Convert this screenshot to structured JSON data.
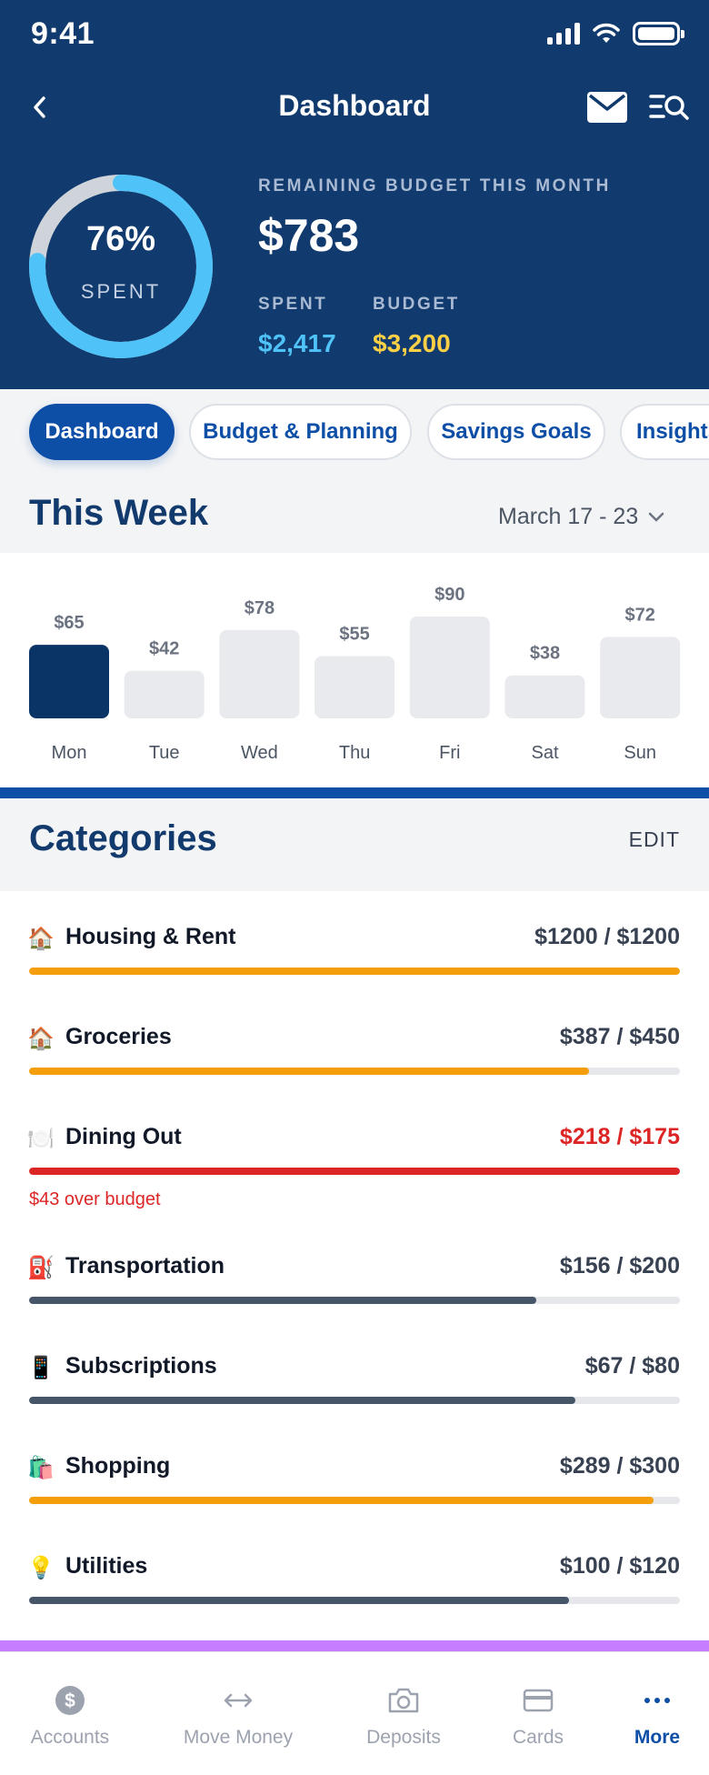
{
  "status_bar": {
    "time": "9:41"
  },
  "header": {
    "title": "Dashboard",
    "ring": {
      "percent_label": "76%",
      "spent_label": "SPENT",
      "fraction": 0.76,
      "track_color": "#cfd4db",
      "fill_color": "#4fc3f7"
    },
    "remaining_label": "REMAINING BUDGET THIS MONTH",
    "remaining_value": "$783",
    "spent_label": "SPENT",
    "spent_value": "$2,417",
    "budget_label": "BUDGET",
    "budget_value": "$3,200"
  },
  "tabs": [
    {
      "label": "Dashboard",
      "active": true
    },
    {
      "label": "Budget & Planning",
      "active": false
    },
    {
      "label": "Savings Goals",
      "active": false
    },
    {
      "label": "Insights",
      "active": false
    }
  ],
  "week": {
    "title": "This Week",
    "range": "March 17 - 23"
  },
  "chart_data": {
    "type": "bar",
    "categories": [
      "Mon",
      "Tue",
      "Wed",
      "Thu",
      "Fri",
      "Sat",
      "Sun"
    ],
    "values": [
      65,
      42,
      78,
      55,
      90,
      38,
      72
    ],
    "value_labels": [
      "$65",
      "$42",
      "$78",
      "$55",
      "$90",
      "$38",
      "$72"
    ],
    "highlight_index": 0,
    "highlight_color": "#0a3366",
    "bar_color": "#e8eaee",
    "title": "",
    "xlabel": "",
    "ylabel": ""
  },
  "categories_section": {
    "title": "Categories",
    "edit_label": "EDIT",
    "items": [
      {
        "icon": "🏠",
        "icon_name": "house-icon",
        "name": "Housing & Rent",
        "amount": "$1200 / $1200",
        "progress": 1.0,
        "color": "#f59e0b",
        "over": false,
        "warning": ""
      },
      {
        "icon": "🏠",
        "icon_name": "house-icon",
        "name": "Groceries",
        "amount": "$387 / $450",
        "progress": 0.86,
        "color": "#f59e0b",
        "over": false,
        "warning": ""
      },
      {
        "icon": "🍽️",
        "icon_name": "plate-icon",
        "name": "Dining Out",
        "amount": "$218 / $175",
        "progress": 1.0,
        "color": "#dc2626",
        "over": true,
        "warning": "$43 over budget"
      },
      {
        "icon": "⛽",
        "icon_name": "fuel-icon",
        "name": "Transportation",
        "amount": "$156 / $200",
        "progress": 0.78,
        "color": "#475569",
        "over": false,
        "warning": ""
      },
      {
        "icon": "📱",
        "icon_name": "phone-icon",
        "name": "Subscriptions",
        "amount": "$67 / $80",
        "progress": 0.84,
        "color": "#475569",
        "over": false,
        "warning": ""
      },
      {
        "icon": "🛍️",
        "icon_name": "shopping-bag-icon",
        "name": "Shopping",
        "amount": "$289 / $300",
        "progress": 0.96,
        "color": "#f59e0b",
        "over": false,
        "warning": ""
      },
      {
        "icon": "💡",
        "icon_name": "lightbulb-icon",
        "name": "Utilities",
        "amount": "$100 / $120",
        "progress": 0.83,
        "color": "#475569",
        "over": false,
        "warning": ""
      }
    ]
  },
  "bottom_nav": [
    {
      "label": "Accounts",
      "icon_name": "dollar-icon",
      "active": false
    },
    {
      "label": "Move Money",
      "icon_name": "transfer-arrows-icon",
      "active": false
    },
    {
      "label": "Deposits",
      "icon_name": "camera-icon",
      "active": false
    },
    {
      "label": "Cards",
      "icon_name": "card-icon",
      "active": false
    },
    {
      "label": "More",
      "icon_name": "more-dots-icon",
      "active": true
    }
  ]
}
